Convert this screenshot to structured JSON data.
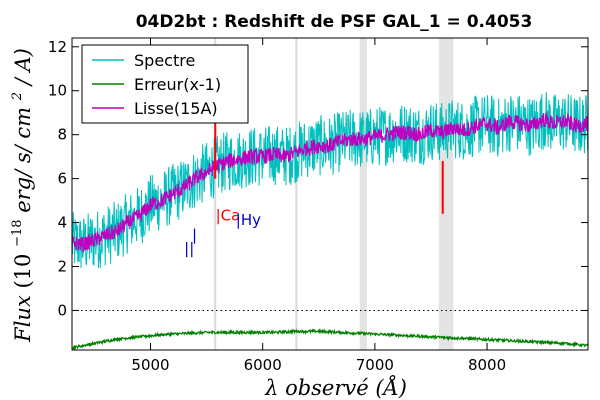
{
  "chart_data": {
    "type": "line",
    "title": "04D2bt : Redshift de PSF GAL_1 = 0.4053",
    "xlabel": "λ observé (Å)",
    "ylabel": "Flux (10^-18 erg/ s/ cm^2/ A)",
    "ylabel_parts": {
      "flux": "Flux",
      "open": "(10",
      "exp": "−18",
      "units": "erg/ s/ cm",
      "sq": "2",
      "tail": "/ A)"
    },
    "xlim": [
      4300,
      8900
    ],
    "ylim": [
      -1.8,
      12.4
    ],
    "xticks": [
      "5000",
      "6000",
      "7000",
      "8000"
    ],
    "yticks": [
      "0",
      "2",
      "4",
      "6",
      "8",
      "10",
      "12"
    ],
    "legend": {
      "position": "top-left",
      "entries": [
        "Spectre",
        "Erreur(x-1)",
        "Lisse(15A)"
      ]
    },
    "series": [
      {
        "name": "Spectre",
        "color": "#00bfbf",
        "x": [
          4300,
          4400,
          4500,
          4600,
          4700,
          4800,
          4900,
          5000,
          5100,
          5200,
          5300,
          5400,
          5500,
          5600,
          5700,
          5800,
          5900,
          6000,
          6100,
          6200,
          6300,
          6400,
          6500,
          6600,
          6700,
          6800,
          6900,
          7000,
          7100,
          7200,
          7300,
          7400,
          7500,
          7600,
          7700,
          7800,
          7900,
          8000,
          8100,
          8200,
          8300,
          8400,
          8500,
          8600,
          8700,
          8800,
          8900
        ],
        "y": [
          3.1,
          3.0,
          3.2,
          3.4,
          3.6,
          4.0,
          4.3,
          4.8,
          5.0,
          5.3,
          5.6,
          6.0,
          6.3,
          6.6,
          6.8,
          6.9,
          7.0,
          7.0,
          7.1,
          7.0,
          7.2,
          7.4,
          7.5,
          7.5,
          7.7,
          7.8,
          7.8,
          7.9,
          8.0,
          8.1,
          8.1,
          8.0,
          8.2,
          8.1,
          8.3,
          8.2,
          8.4,
          8.5,
          8.3,
          8.6,
          8.5,
          8.4,
          8.7,
          8.5,
          8.6,
          8.4,
          8.5
        ],
        "noise": 1.4
      },
      {
        "name": "Lisse(15A)",
        "color": "#bf00bf",
        "x": [
          4300,
          4400,
          4500,
          4600,
          4700,
          4800,
          4900,
          5000,
          5100,
          5200,
          5300,
          5400,
          5500,
          5600,
          5700,
          5800,
          5900,
          6000,
          6100,
          6200,
          6300,
          6400,
          6500,
          6600,
          6700,
          6800,
          6900,
          7000,
          7100,
          7200,
          7300,
          7400,
          7500,
          7600,
          7700,
          7800,
          7900,
          8000,
          8100,
          8200,
          8300,
          8400,
          8500,
          8600,
          8700,
          8800,
          8900
        ],
        "y": [
          3.1,
          3.0,
          3.2,
          3.4,
          3.6,
          4.0,
          4.3,
          4.8,
          5.0,
          5.3,
          5.6,
          6.0,
          6.3,
          6.6,
          6.8,
          6.9,
          7.0,
          7.0,
          7.1,
          7.0,
          7.2,
          7.4,
          7.5,
          7.5,
          7.7,
          7.8,
          7.8,
          7.9,
          8.0,
          8.1,
          8.1,
          8.0,
          8.2,
          8.1,
          8.3,
          8.2,
          8.4,
          8.5,
          8.3,
          8.6,
          8.5,
          8.4,
          8.7,
          8.5,
          8.6,
          8.4,
          8.5
        ],
        "noise": 0.35
      },
      {
        "name": "Erreur(x-1)",
        "color": "#008000",
        "x": [
          4300,
          4500,
          4700,
          4900,
          5100,
          5300,
          5500,
          5700,
          5900,
          6100,
          6300,
          6500,
          6700,
          6900,
          7100,
          7300,
          7500,
          7700,
          7900,
          8100,
          8300,
          8500,
          8700,
          8900
        ],
        "y": [
          -1.7,
          -1.5,
          -1.3,
          -1.2,
          -1.1,
          -1.05,
          -1.0,
          -1.0,
          -1.0,
          -1.0,
          -0.95,
          -0.95,
          -1.0,
          -1.05,
          -1.1,
          -1.15,
          -1.2,
          -1.25,
          -1.3,
          -1.35,
          -1.4,
          -1.45,
          -1.5,
          -1.6
        ],
        "noise": 0.06
      }
    ],
    "spikes": [
      {
        "x": 5577,
        "y": [
          6.0,
          9.6
        ],
        "color": "#ff0000"
      },
      {
        "x": 7605,
        "y": [
          4.4,
          6.8
        ],
        "color": "#ff0000"
      }
    ],
    "gray_bands": [
      [
        6865,
        6930
      ],
      [
        7570,
        7700
      ]
    ],
    "gray_lines": [
      5577,
      6300
    ],
    "zero_line": 0,
    "line_ids": [
      {
        "x": 5300,
        "y": 2.6,
        "label": "||",
        "color": "#0000cc"
      },
      {
        "x": 5370,
        "y": 3.2,
        "label": "|",
        "color": "#0000cc"
      },
      {
        "x": 5580,
        "y": 4.1,
        "label": "|Ca",
        "color": "#ff0000"
      },
      {
        "x": 5760,
        "y": 3.9,
        "label": "|Hy",
        "color": "#0000cc"
      }
    ]
  }
}
